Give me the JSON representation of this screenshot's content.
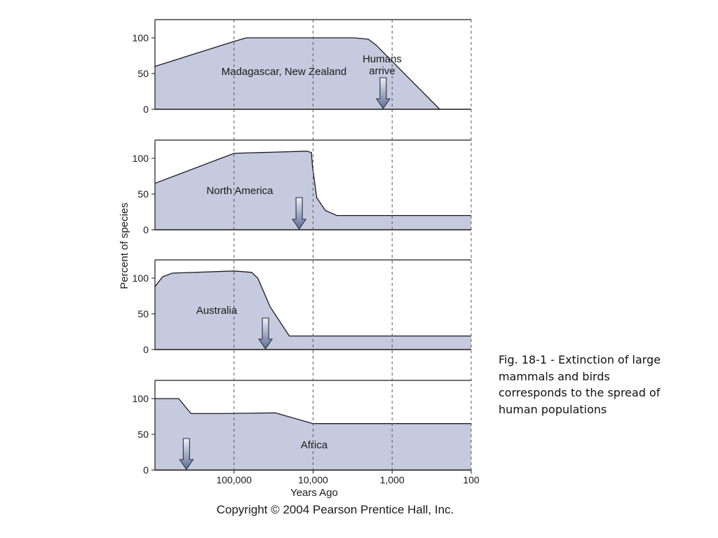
{
  "caption": "Fig. 18-1 - Extinction of large mammals and birds corresponds to the spread of human populations",
  "copyright": "Copyright © 2004 Pearson Prentice Hall, Inc.",
  "colors": {
    "fill": "#c6cade",
    "outline": "#1a1a1a",
    "arrow_top": "#eef0f7",
    "arrow_bottom": "#5d6c96",
    "gridline": "#555555"
  },
  "chart_data": [
    {
      "type": "area",
      "title": "",
      "area_label": "Madagascar, New Zealand",
      "annotation": [
        "Humans",
        "arrive"
      ],
      "arrow_at_years_ago": 1300,
      "ylim": [
        0,
        125
      ],
      "yticks": [
        0,
        50,
        100
      ],
      "xlim_years_ago": [
        1000000,
        100
      ],
      "x_scale": "log-reversed",
      "x": [
        1000000,
        100000,
        70000,
        3000,
        2000,
        1600,
        250
      ],
      "y": [
        60,
        95,
        100,
        100,
        98,
        90,
        0
      ]
    },
    {
      "type": "area",
      "title": "",
      "area_label": "North America",
      "arrow_at_years_ago": 15000,
      "ylim": [
        0,
        125
      ],
      "yticks": [
        0,
        50,
        100
      ],
      "xlim_years_ago": [
        1000000,
        100
      ],
      "x_scale": "log-reversed",
      "x": [
        1000000,
        100000,
        12000,
        10500,
        10200,
        9000,
        7000,
        5000,
        100
      ],
      "y": [
        65,
        107,
        110,
        108,
        90,
        45,
        27,
        20,
        20
      ]
    },
    {
      "type": "area",
      "title": "",
      "area_label": "Australia",
      "arrow_at_years_ago": 40000,
      "ylim": [
        0,
        125
      ],
      "yticks": [
        0,
        50,
        100
      ],
      "xlim_years_ago": [
        1000000,
        100
      ],
      "x_scale": "log-reversed",
      "x": [
        1000000,
        800000,
        600000,
        100000,
        60000,
        50000,
        35000,
        20000,
        100
      ],
      "y": [
        88,
        102,
        107,
        110,
        108,
        100,
        60,
        19,
        19
      ]
    },
    {
      "type": "area",
      "title": "",
      "area_label": "Africa",
      "arrow_at_years_ago": 400000,
      "ylim": [
        0,
        125
      ],
      "yticks": [
        0,
        50,
        100
      ],
      "xlim_years_ago": [
        1000000,
        100
      ],
      "x_scale": "log-reversed",
      "x": [
        1000000,
        500000,
        350000,
        150000,
        30000,
        10000,
        100
      ],
      "y": [
        100,
        100,
        79,
        79,
        80,
        65,
        65
      ],
      "xticks": [
        "100,000",
        "10,000",
        "1,000",
        "100"
      ],
      "xlabel": "Years Ago"
    }
  ],
  "y_axis_title": "Percent of species"
}
